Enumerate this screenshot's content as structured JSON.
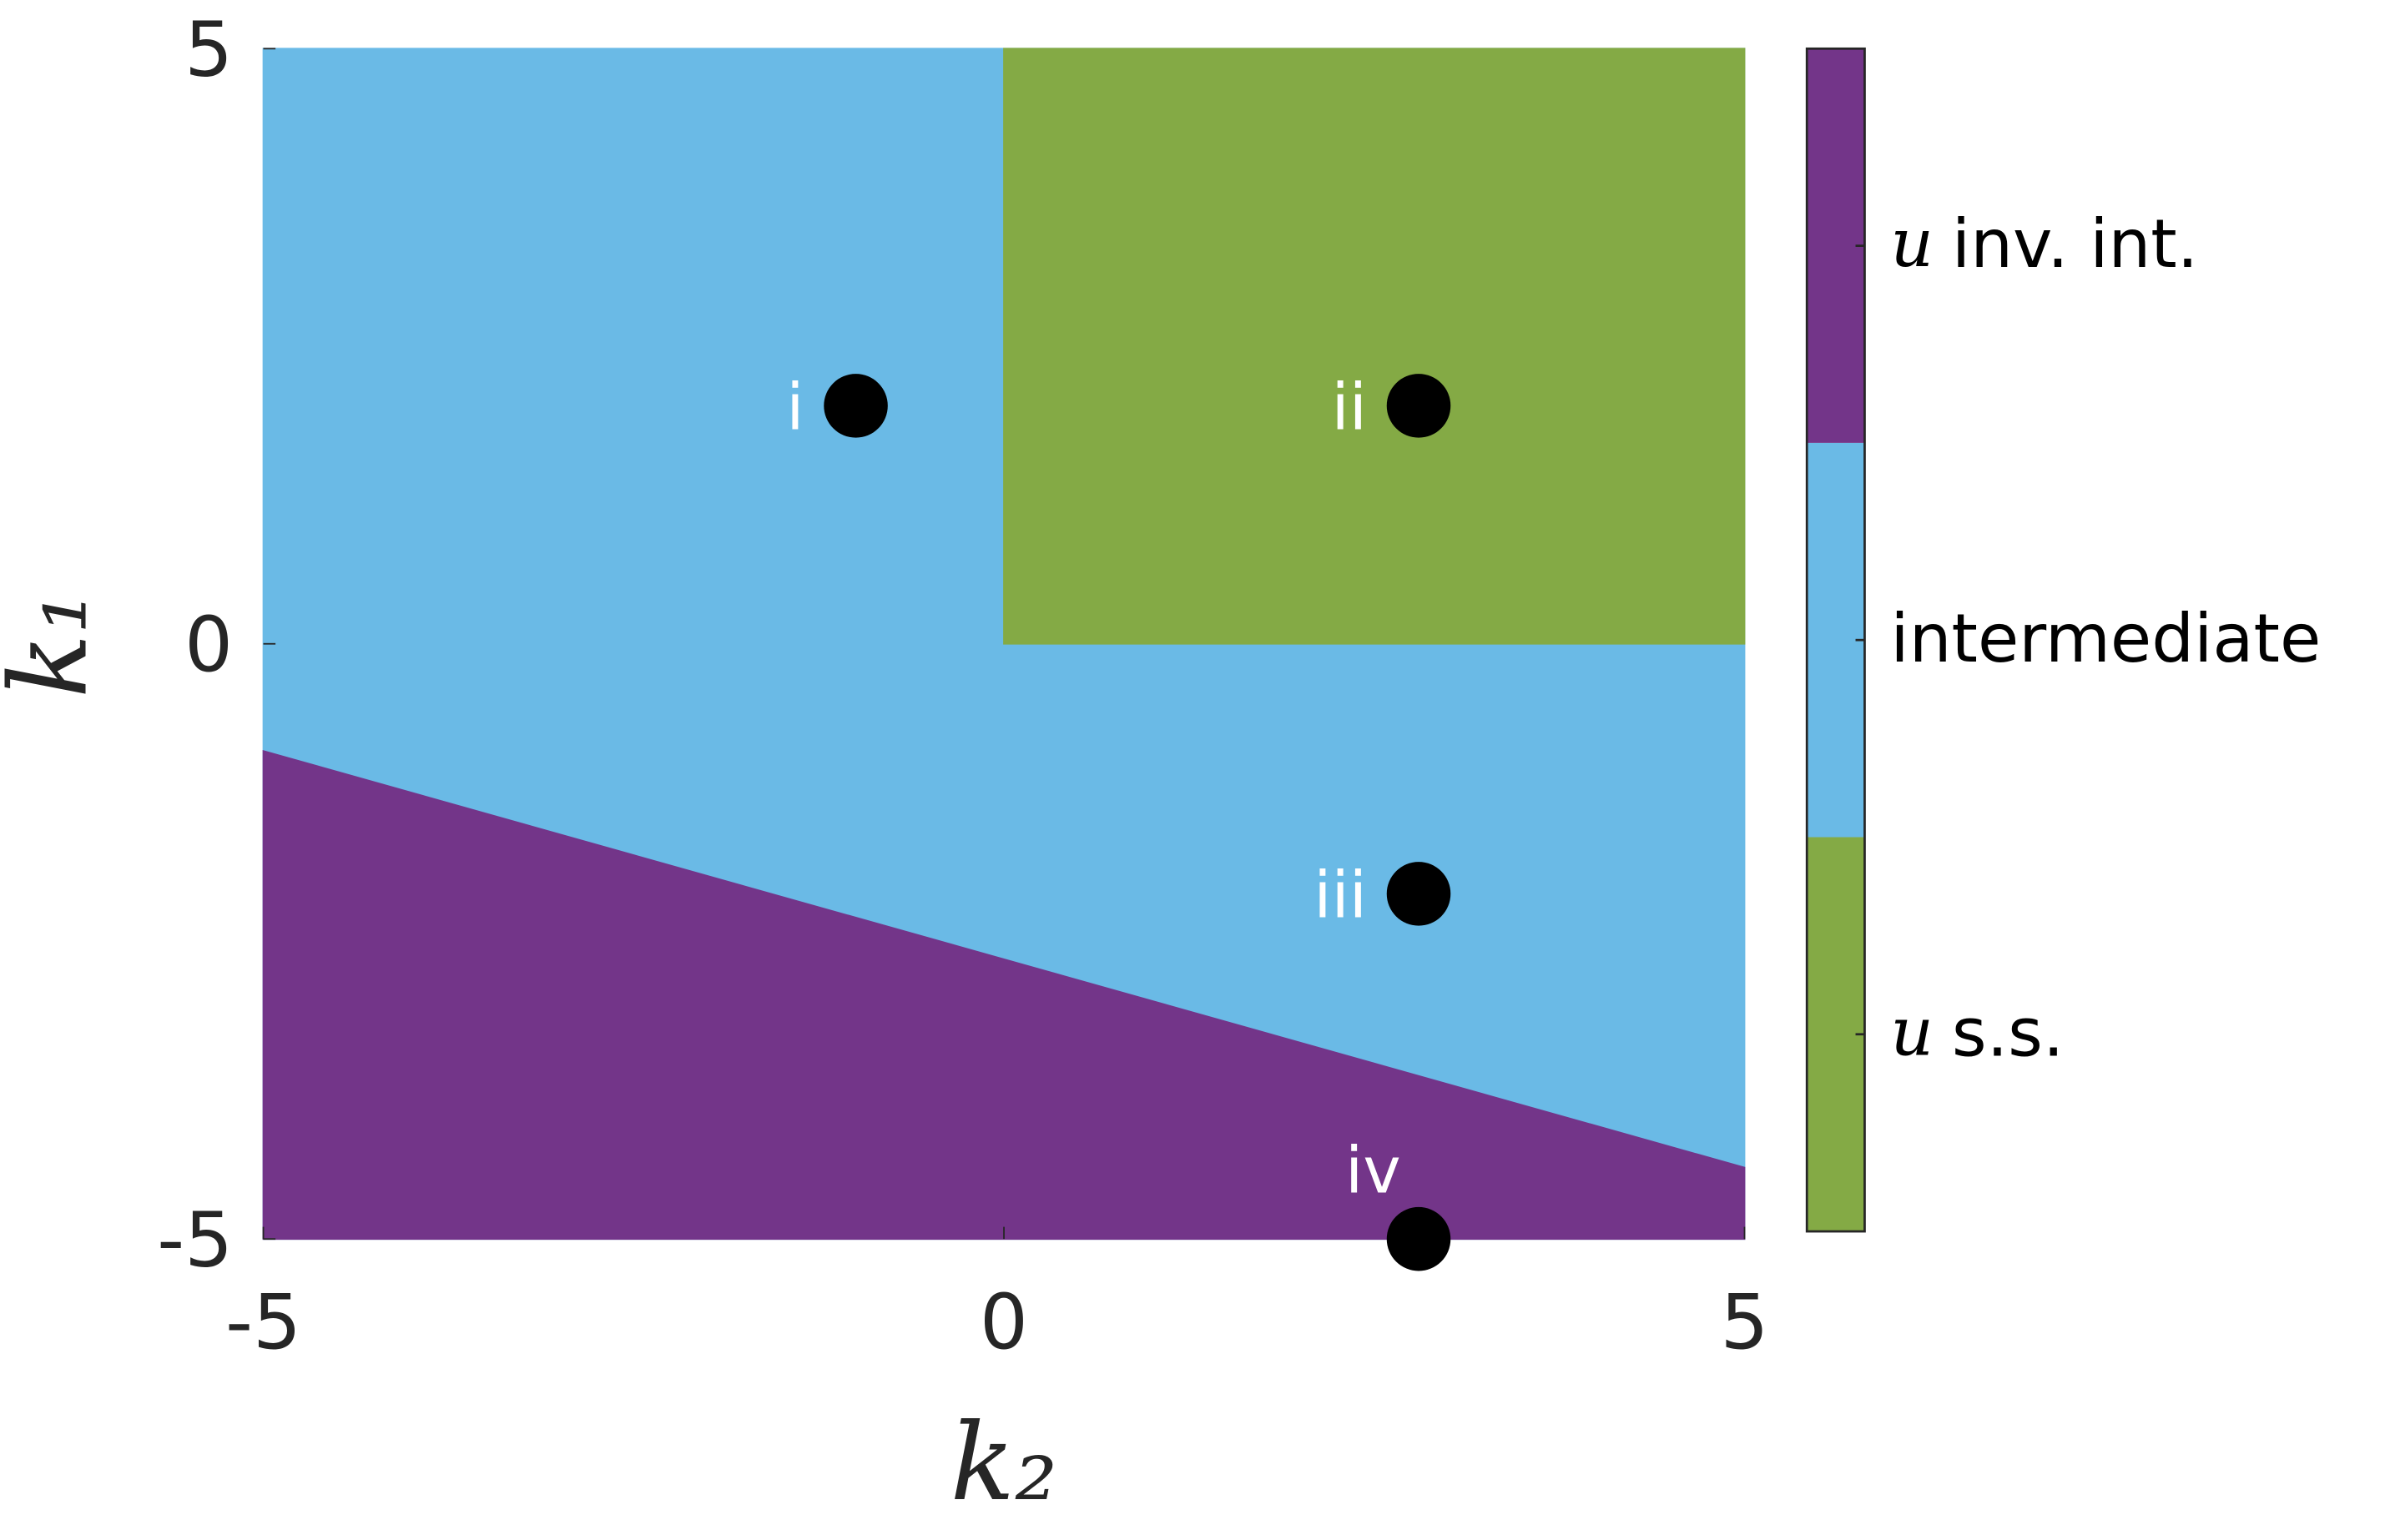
{
  "chart_data": {
    "type": "region",
    "xlabel": "k₂",
    "ylabel": "k₁",
    "xlim": [
      -5,
      5
    ],
    "ylim": [
      -5,
      5
    ],
    "xticks": [
      -5,
      0,
      5
    ],
    "yticks": [
      -5,
      0,
      5
    ],
    "regions": [
      {
        "color": "#6abae6",
        "x": [
          -5,
          5,
          5,
          -5
        ],
        "y": [
          -5,
          -5,
          5,
          5
        ]
      },
      {
        "color": "#84aa45",
        "x": [
          0,
          5,
          5,
          0
        ],
        "y": [
          0,
          0,
          5,
          5
        ]
      },
      {
        "color": "#733589",
        "x": [
          -5,
          -5,
          5,
          5
        ],
        "y": [
          -5,
          -0.9,
          -4.4,
          -5
        ]
      }
    ],
    "points": [
      {
        "label": "i",
        "x": -1,
        "y": 2
      },
      {
        "label": "ii",
        "x": 2.8,
        "y": 2
      },
      {
        "label": "iii",
        "x": 2.8,
        "y": -2.1
      },
      {
        "label": "iv",
        "x": 2.8,
        "y": -5
      }
    ],
    "colorbar": [
      {
        "symbol": "u",
        "text": "s.s.",
        "color": "#84aa45"
      },
      {
        "text": "intermediate",
        "color": "#6abae6"
      },
      {
        "symbol": "u",
        "text": "inv. int.",
        "color": "#733589"
      }
    ]
  }
}
